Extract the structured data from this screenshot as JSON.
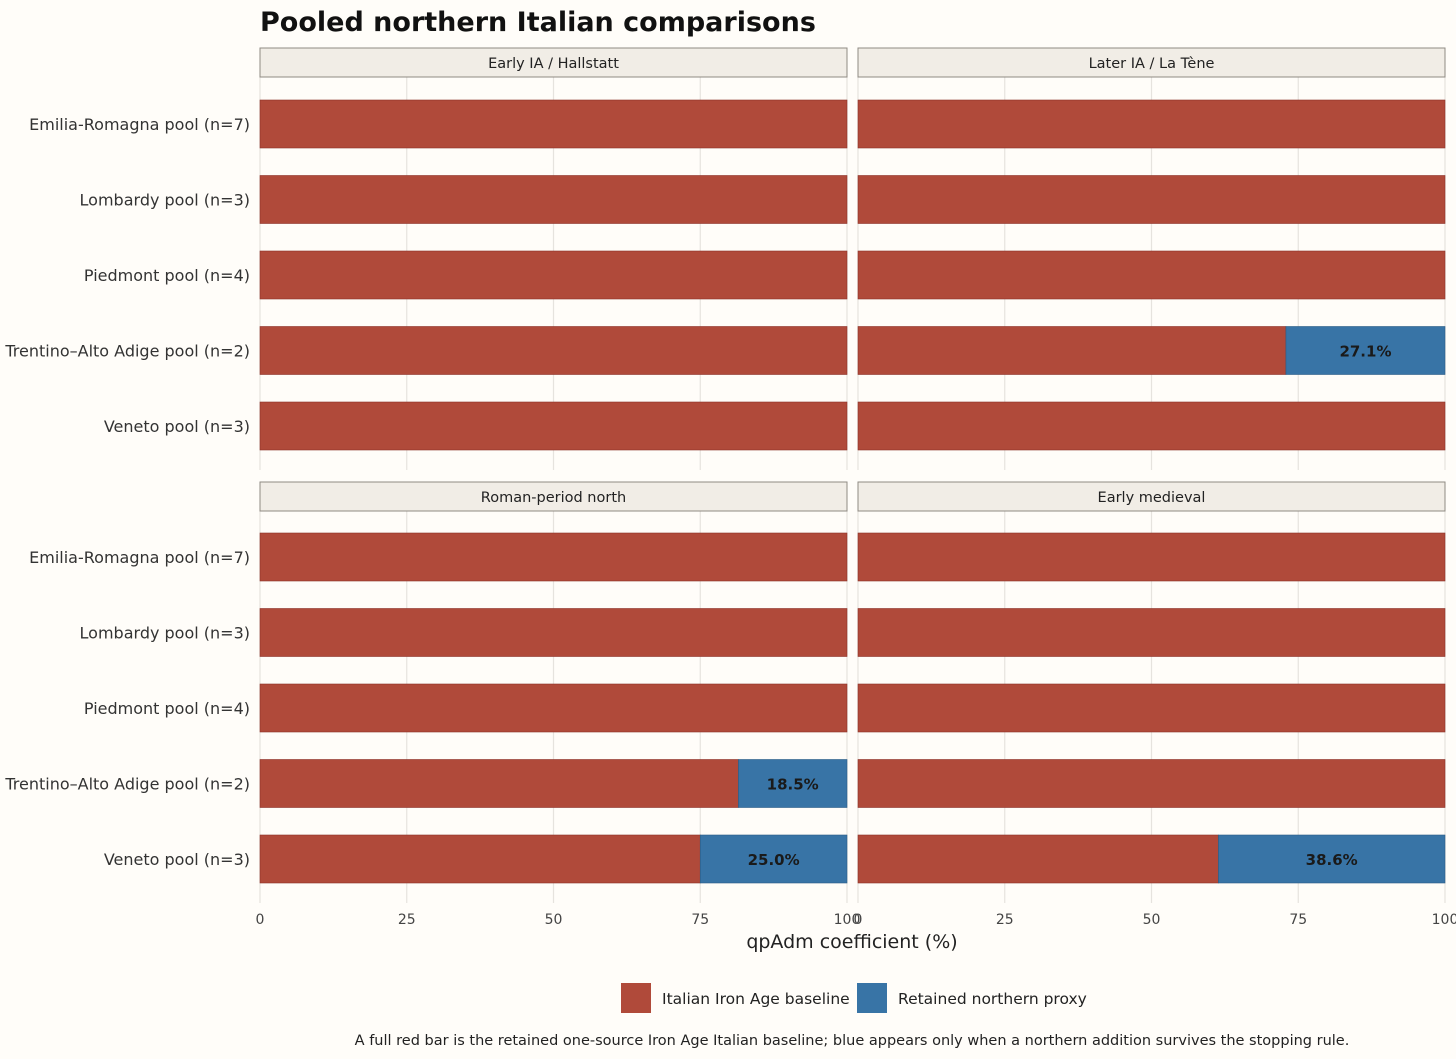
{
  "title": "Pooled northern Italian comparisons",
  "xlabel": "qpAdm coefficient (%)",
  "caption": "A full red bar is the retained one-source Iron Age Italian baseline; blue appears only when a northern addition survives the stopping rule.",
  "legend": [
    {
      "label": "Italian Iron Age baseline",
      "color": "#b04a3a"
    },
    {
      "label": "Retained northern proxy",
      "color": "#3874a6"
    }
  ],
  "chart_data": {
    "type": "bar",
    "orientation": "horizontal",
    "stacked": true,
    "title": "Pooled northern Italian comparisons",
    "xlabel": "qpAdm coefficient (%)",
    "xlim": [
      0,
      100
    ],
    "xticks": [
      "0",
      "25",
      "50",
      "75",
      "100"
    ],
    "categories": [
      "Emilia-Romagna pool (n=7)",
      "Lombardy pool (n=3)",
      "Piedmont pool (n=4)",
      "Trentino–Alto Adige pool (n=2)",
      "Veneto pool (n=3)"
    ],
    "legend_position": "bottom",
    "grid": true,
    "facets": [
      {
        "name": "Early IA / Hallstatt",
        "series": [
          {
            "name": "Italian Iron Age baseline",
            "values": [
              100,
              100,
              100,
              100,
              100
            ]
          },
          {
            "name": "Retained northern proxy",
            "values": [
              0,
              0,
              0,
              0,
              0
            ]
          }
        ],
        "labels": [
          "",
          "",
          "",
          "",
          ""
        ]
      },
      {
        "name": "Later IA / La Tène",
        "series": [
          {
            "name": "Italian Iron Age baseline",
            "values": [
              100,
              100,
              100,
              72.9,
              100
            ]
          },
          {
            "name": "Retained northern proxy",
            "values": [
              0,
              0,
              0,
              27.1,
              0
            ]
          }
        ],
        "labels": [
          "",
          "",
          "",
          "27.1%",
          ""
        ]
      },
      {
        "name": "Roman-period north",
        "series": [
          {
            "name": "Italian Iron Age baseline",
            "values": [
              100,
              100,
              100,
              81.5,
              75.0
            ]
          },
          {
            "name": "Retained northern proxy",
            "values": [
              0,
              0,
              0,
              18.5,
              25.0
            ]
          }
        ],
        "labels": [
          "",
          "",
          "",
          "18.5%",
          "25.0%"
        ]
      },
      {
        "name": "Early medieval",
        "series": [
          {
            "name": "Italian Iron Age baseline",
            "values": [
              100,
              100,
              100,
              100,
              61.4
            ]
          },
          {
            "name": "Retained northern proxy",
            "values": [
              0,
              0,
              0,
              0,
              38.6
            ]
          }
        ],
        "labels": [
          "",
          "",
          "",
          "",
          "38.6%"
        ]
      }
    ]
  }
}
